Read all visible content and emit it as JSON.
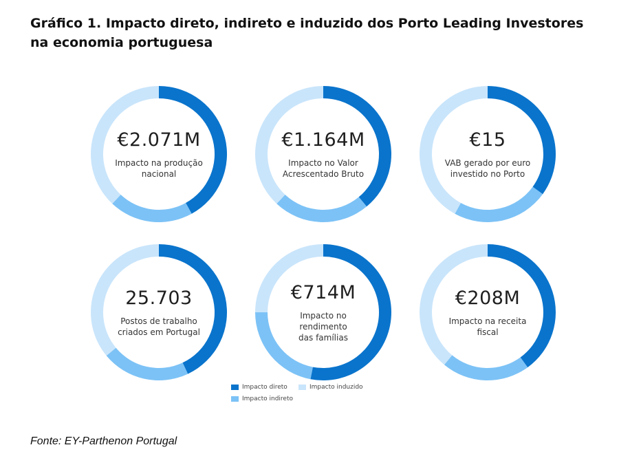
{
  "title": "Gráfico 1. Impacto direto, indireto e induzido dos Porto Leading Investores na economia portuguesa",
  "source": "Fonte: EY-Parthenon Portugal",
  "colors": {
    "direto": "#0a74cc",
    "indireto": "#7cc2f6",
    "induzido": "#c9e5fb"
  },
  "legend": {
    "direto": "Impacto direto",
    "indireto": "Impacto indireto",
    "induzido": "Impacto induzido"
  },
  "chart_data": [
    {
      "type": "pie",
      "donut": true,
      "value_label": "€2.071M",
      "caption": "Impacto na produção\nnacional",
      "series": [
        {
          "name": "Impacto direto",
          "value": 42
        },
        {
          "name": "Impacto indireto",
          "value": 20
        },
        {
          "name": "Impacto induzido",
          "value": 38
        }
      ]
    },
    {
      "type": "pie",
      "donut": true,
      "value_label": "€1.164M",
      "caption": "Impacto no Valor\nAcrescentado Bruto",
      "series": [
        {
          "name": "Impacto direto",
          "value": 39
        },
        {
          "name": "Impacto indireto",
          "value": 23
        },
        {
          "name": "Impacto induzido",
          "value": 38
        }
      ]
    },
    {
      "type": "pie",
      "donut": true,
      "value_label": "€15",
      "caption": "VAB gerado por euro\ninvestido no Porto",
      "series": [
        {
          "name": "Impacto direto",
          "value": 35
        },
        {
          "name": "Impacto indireto",
          "value": 23
        },
        {
          "name": "Impacto induzido",
          "value": 42
        }
      ]
    },
    {
      "type": "pie",
      "donut": true,
      "value_label": "25.703",
      "caption": "Postos de trabalho\ncriados em Portugal",
      "series": [
        {
          "name": "Impacto direto",
          "value": 43
        },
        {
          "name": "Impacto indireto",
          "value": 21
        },
        {
          "name": "Impacto induzido",
          "value": 36
        }
      ]
    },
    {
      "type": "pie",
      "donut": true,
      "value_label": "€714M",
      "caption": "Impacto no rendimento\ndas famílias",
      "series": [
        {
          "name": "Impacto direto",
          "value": 53
        },
        {
          "name": "Impacto indireto",
          "value": 22
        },
        {
          "name": "Impacto induzido",
          "value": 25
        }
      ]
    },
    {
      "type": "pie",
      "donut": true,
      "value_label": "€208M",
      "caption": "Impacto na receita\nfiscal",
      "series": [
        {
          "name": "Impacto direto",
          "value": 40
        },
        {
          "name": "Impacto indireto",
          "value": 21
        },
        {
          "name": "Impacto induzido",
          "value": 39
        }
      ]
    }
  ]
}
